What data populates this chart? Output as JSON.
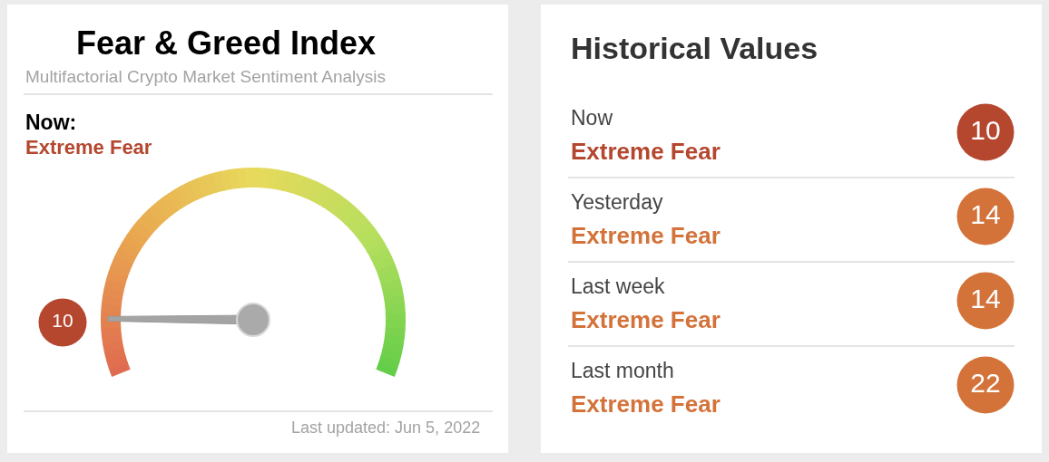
{
  "chart_data": [
    {
      "type": "other",
      "title": "Fear & Greed Index",
      "subtitle": "Multifactorial Crypto Market Sentiment Analysis",
      "values": [
        10
      ],
      "data_labels": true,
      "color": "#b5472f",
      "annotations": [
        "Now:",
        "Extreme Fear",
        "Last updated: Jun 5, 2022"
      ]
    },
    {
      "type": "other",
      "title": "Historical Values",
      "categories": [
        "Now",
        "Yesterday",
        "Last week",
        "Last month"
      ],
      "values": [
        10,
        14,
        14,
        22
      ],
      "data_labels": true,
      "colors": [
        "#b5472f",
        "#d3733a",
        "#d3733a",
        "#d3733a"
      ],
      "annotations": [
        "Extreme Fear",
        "Extreme Fear",
        "Extreme Fear",
        "Extreme Fear"
      ]
    }
  ]
}
